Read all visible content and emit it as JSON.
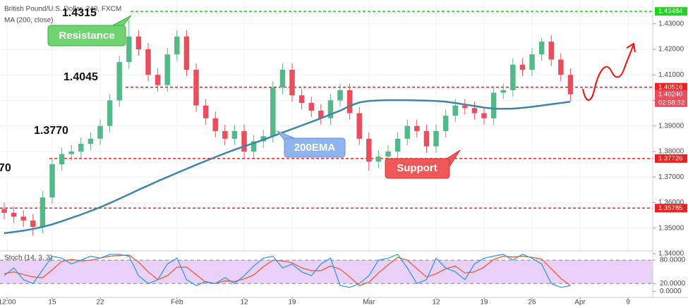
{
  "chart_data": {
    "type": "candlestick",
    "title": "British Pound/U.S. Dollar, 240, FXCM",
    "x": [
      -5,
      -4,
      -3,
      -2,
      -1,
      0,
      1,
      2,
      3,
      4,
      5,
      6,
      7,
      8,
      9,
      10,
      11,
      12,
      13,
      14,
      15,
      16,
      17,
      18,
      19,
      20,
      21,
      22,
      23,
      24,
      25,
      26,
      27,
      28,
      29,
      30,
      31,
      32,
      33,
      34,
      35,
      36,
      37,
      38,
      39,
      40,
      41,
      42,
      43,
      44,
      45,
      46,
      47,
      48,
      49,
      50,
      51,
      52,
      53,
      54
    ],
    "open": [
      1.3575,
      1.356,
      1.3545,
      1.353,
      1.3505,
      1.362,
      1.375,
      1.379,
      1.38,
      1.383,
      1.385,
      1.39,
      1.4,
      1.415,
      1.425,
      1.42,
      1.41,
      1.406,
      1.418,
      1.425,
      1.412,
      1.398,
      1.393,
      1.388,
      1.385,
      1.388,
      1.38,
      1.384,
      1.386,
      1.405,
      1.412,
      1.402,
      1.399,
      1.396,
      1.393,
      1.4,
      1.404,
      1.395,
      1.385,
      1.376,
      1.378,
      1.38,
      1.385,
      1.39,
      1.388,
      1.382,
      1.388,
      1.394,
      1.398,
      1.397,
      1.395,
      1.393,
      1.403,
      1.404,
      1.414,
      1.412,
      1.418,
      1.423,
      1.416,
      1.41
    ],
    "high": [
      1.36,
      1.3585,
      1.357,
      1.3555,
      1.3645,
      1.3775,
      1.3815,
      1.3825,
      1.3855,
      1.3875,
      1.3925,
      1.4025,
      1.4175,
      1.4315,
      1.4275,
      1.4225,
      1.4125,
      1.4205,
      1.4275,
      1.4275,
      1.4145,
      1.4005,
      1.3955,
      1.3905,
      1.3905,
      1.3905,
      1.3865,
      1.3885,
      1.4075,
      1.4145,
      1.4145,
      1.4045,
      1.4015,
      1.3985,
      1.4025,
      1.4065,
      1.4065,
      1.3975,
      1.3875,
      1.3805,
      1.3825,
      1.3875,
      1.3925,
      1.3925,
      1.3905,
      1.3905,
      1.3965,
      1.4005,
      1.4005,
      1.3995,
      1.3975,
      1.4055,
      1.4065,
      1.4165,
      1.4165,
      1.4205,
      1.4245,
      1.4255,
      1.4185,
      1.4125
    ],
    "low": [
      1.3535,
      1.352,
      1.3505,
      1.347,
      1.348,
      1.3595,
      1.3725,
      1.3765,
      1.3775,
      1.3805,
      1.3825,
      1.3875,
      1.3975,
      1.4125,
      1.4175,
      1.4075,
      1.4035,
      1.4035,
      1.4155,
      1.4095,
      1.3955,
      1.3905,
      1.3855,
      1.3825,
      1.3825,
      1.3775,
      1.3775,
      1.3815,
      1.3835,
      1.4025,
      1.3995,
      1.3965,
      1.3935,
      1.3905,
      1.3905,
      1.3975,
      1.3925,
      1.3825,
      1.3725,
      1.3735,
      1.3755,
      1.3775,
      1.3825,
      1.3855,
      1.3795,
      1.3795,
      1.3855,
      1.3915,
      1.3945,
      1.3925,
      1.3905,
      1.3905,
      1.4005,
      1.4015,
      1.4095,
      1.4095,
      1.4155,
      1.4135,
      1.4075,
      1.3999
    ],
    "close": [
      1.356,
      1.3545,
      1.353,
      1.3505,
      1.362,
      1.375,
      1.379,
      1.38,
      1.383,
      1.385,
      1.39,
      1.4,
      1.415,
      1.425,
      1.42,
      1.41,
      1.406,
      1.418,
      1.425,
      1.412,
      1.398,
      1.393,
      1.388,
      1.385,
      1.388,
      1.38,
      1.384,
      1.386,
      1.405,
      1.412,
      1.402,
      1.399,
      1.396,
      1.393,
      1.4,
      1.404,
      1.395,
      1.385,
      1.376,
      1.378,
      1.38,
      1.385,
      1.39,
      1.388,
      1.382,
      1.388,
      1.394,
      1.398,
      1.397,
      1.395,
      1.393,
      1.403,
      1.404,
      1.414,
      1.412,
      1.418,
      1.423,
      1.416,
      1.41,
      1.4024
    ],
    "up_color": "#53b987",
    "down_color": "#eb4d5c",
    "ma": {
      "name": "MA (200, close)",
      "color": "#3d86a8",
      "values": [
        1.348,
        1.3485,
        1.349,
        1.3497,
        1.3505,
        1.3515,
        1.3527,
        1.354,
        1.3553,
        1.3567,
        1.3582,
        1.3598,
        1.3615,
        1.3632,
        1.365,
        1.3667,
        1.3684,
        1.37,
        1.3716,
        1.3732,
        1.3748,
        1.3763,
        1.3778,
        1.3793,
        1.3807,
        1.382,
        1.3833,
        1.3846,
        1.386,
        1.3874,
        1.3888,
        1.3902,
        1.3916,
        1.393,
        1.3945,
        1.396,
        1.3978,
        1.3992,
        1.3998,
        1.4,
        1.4001,
        1.4001,
        1.4001,
        1.4,
        1.3999,
        1.3998,
        1.3995,
        1.399,
        1.3984,
        1.3978,
        1.3972,
        1.3968,
        1.3967,
        1.3968,
        1.3971,
        1.3975,
        1.398,
        1.3985,
        1.399,
        1.3995
      ]
    },
    "xlim": [
      -5.44,
      62.57
    ],
    "xticks": [
      {
        "value": -4.7,
        "label": "12:00"
      },
      {
        "value": 0,
        "label": "15"
      },
      {
        "value": 5,
        "label": "22"
      },
      {
        "value": 13,
        "label": "Feb"
      },
      {
        "value": 20,
        "label": "12"
      },
      {
        "value": 25,
        "label": "19"
      },
      {
        "value": 33,
        "label": "Mar"
      },
      {
        "value": 40,
        "label": "12"
      },
      {
        "value": 45,
        "label": "19"
      },
      {
        "value": 50,
        "label": "26"
      },
      {
        "value": 55,
        "label": "Apr"
      },
      {
        "value": 60,
        "label": "9"
      }
    ],
    "ylim": [
      1.3375,
      1.4393
    ],
    "yticks": [
      {
        "value": 1.34,
        "label": "1.34000"
      },
      {
        "value": 1.35,
        "label": "1.35000"
      },
      {
        "value": 1.36,
        "label": "1.36000"
      },
      {
        "value": 1.37,
        "label": "1.37000"
      },
      {
        "value": 1.38,
        "label": "1.38000"
      },
      {
        "value": 1.39,
        "label": "1.39000"
      },
      {
        "value": 1.4,
        "label": "1.40000"
      },
      {
        "value": 1.41,
        "label": "1.41000"
      },
      {
        "value": 1.42,
        "label": "1.42000"
      },
      {
        "value": 1.43,
        "label": "1.43000"
      }
    ],
    "grid": true,
    "levels": [
      1.43484,
      1.40516,
      1.37726,
      1.35785
    ],
    "level_colors": [
      "#1fd41f",
      "#f02020",
      "#f02020",
      "#f02020"
    ],
    "last": {
      "value": 1.4024,
      "label": "1.40240"
    },
    "countdown": "02:58:32",
    "annotations": [
      "1.4315",
      "1.4045",
      "1.3770",
      "70"
    ],
    "callouts": [
      "Resistance",
      "200EMA",
      "Support"
    ],
    "stoch": {
      "name": "Stoch (14, 3, 3)",
      "ylim": [
        -12,
        100
      ],
      "yticks": [
        {
          "value": 0,
          "label": "0.0000"
        },
        {
          "value": 20,
          "label": "20.0000"
        },
        {
          "value": 80,
          "label": "80.0000"
        }
      ],
      "band": [
        20,
        80
      ],
      "band_color": "#e3c6f7",
      "k": {
        "color": "#2196f3",
        "values": [
          40,
          60,
          30,
          20,
          55,
          90,
          85,
          70,
          80,
          90,
          85,
          95,
          95,
          90,
          40,
          20,
          30,
          70,
          85,
          30,
          15,
          25,
          20,
          35,
          20,
          40,
          65,
          85,
          90,
          60,
          70,
          50,
          40,
          70,
          85,
          15,
          10,
          20,
          40,
          80,
          85,
          95,
          60,
          20,
          30,
          85,
          60,
          50,
          30,
          70,
          85,
          90,
          95,
          80,
          95,
          85,
          70,
          20,
          10,
          15
        ]
      },
      "d": {
        "color": "#f4511e",
        "values": [
          45,
          50,
          43,
          37,
          35,
          55,
          77,
          82,
          78,
          80,
          85,
          90,
          92,
          93,
          75,
          50,
          30,
          40,
          62,
          62,
          43,
          23,
          20,
          27,
          25,
          32,
          42,
          63,
          80,
          78,
          73,
          60,
          53,
          53,
          65,
          57,
          37,
          15,
          23,
          47,
          68,
          87,
          80,
          58,
          37,
          45,
          58,
          65,
          47,
          50,
          62,
          82,
          90,
          88,
          90,
          87,
          83,
          58,
          33,
          15
        ]
      }
    }
  }
}
